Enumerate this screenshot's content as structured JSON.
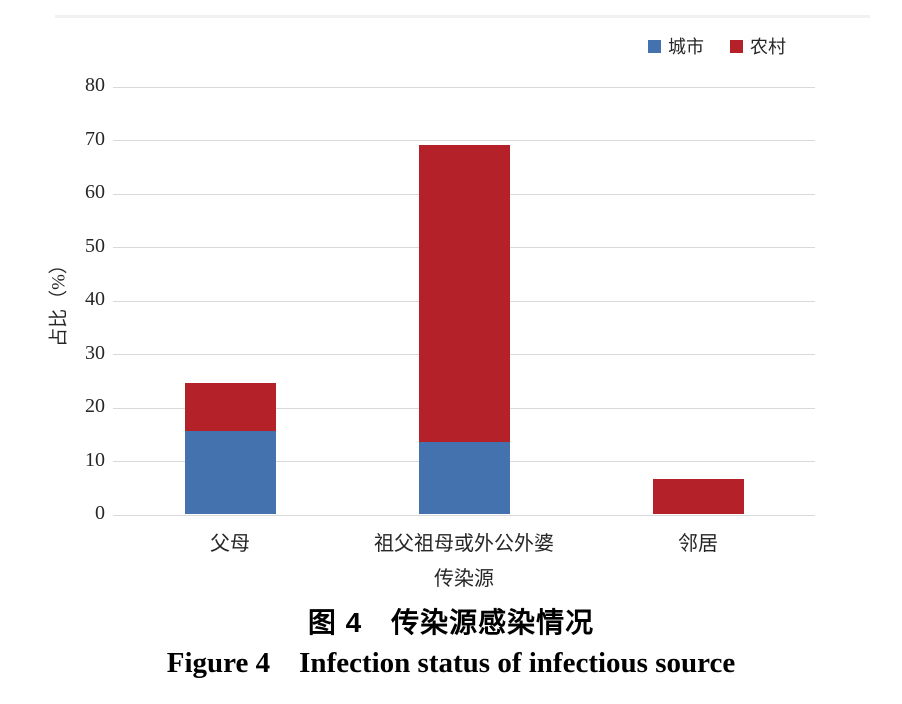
{
  "chart_data": {
    "type": "bar",
    "stacked": true,
    "categories": [
      "父母",
      "祖父祖母或外公外婆",
      "邻居"
    ],
    "series": [
      {
        "name": "城市",
        "color": "#4472ae",
        "values": [
          15.5,
          13.4,
          0
        ]
      },
      {
        "name": "农村",
        "color": "#b42128",
        "values": [
          9.0,
          55.6,
          6.6
        ]
      }
    ],
    "stack_totals": [
      24.5,
      69.0,
      6.6
    ],
    "xlabel": "传染源",
    "ylabel": "占比（%）",
    "ylim": [
      0,
      80
    ],
    "yticks": [
      0,
      10,
      20,
      30,
      40,
      50,
      60,
      70,
      80
    ],
    "grid": "horizontal",
    "gridline_color": "#d9d9d9",
    "legend_position": "top-right"
  },
  "caption": {
    "zh": "图 4　传染源感染情况",
    "en": "Figure 4　Infection status of infectious source"
  }
}
